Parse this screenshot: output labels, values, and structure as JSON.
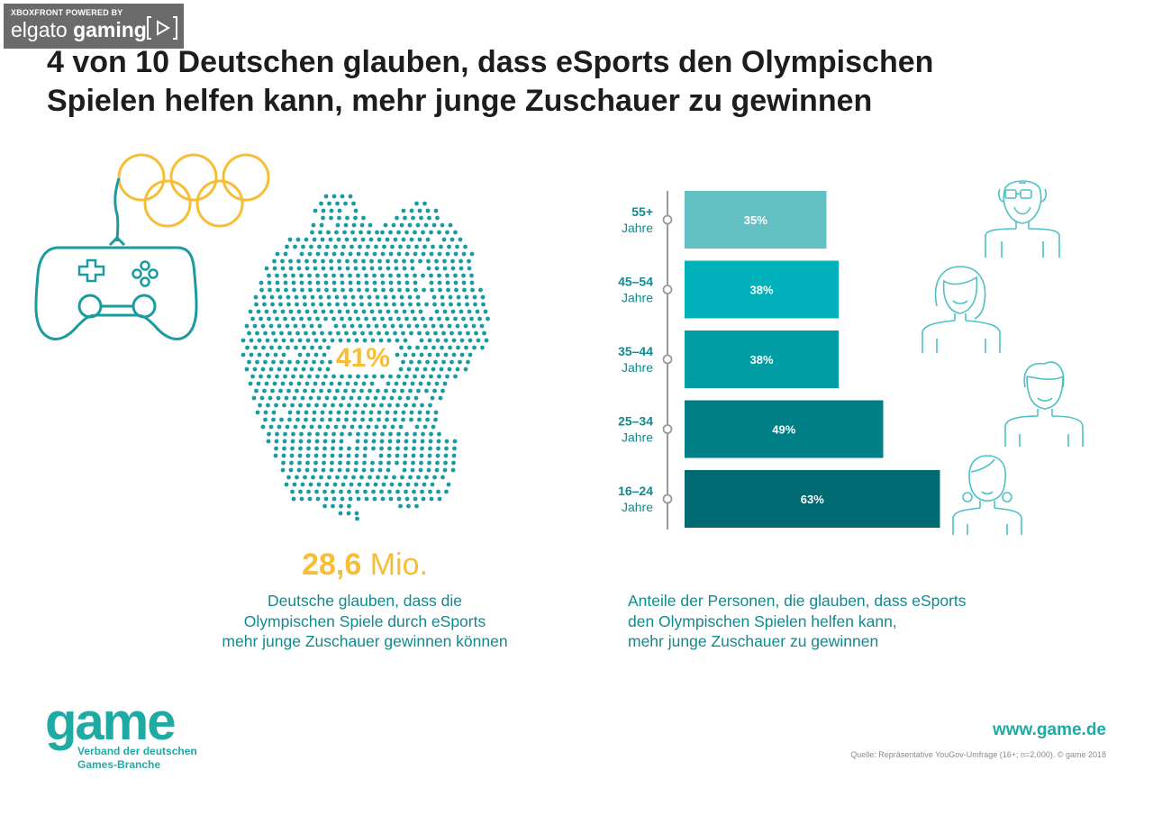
{
  "watermark": {
    "top": "XBOXFRONT POWERED BY",
    "brand_light": "elgato",
    "brand_bold": "gaming"
  },
  "title_line1": "4 von 10 Deutschen glauben, dass eSports den Olympischen",
  "title_line2": "Spielen helfen kann, mehr junge Zuschauer zu gewinnen",
  "map_percent": "41%",
  "big_number": "28,6",
  "big_unit": "Mio.",
  "left_desc": [
    "Deutsche glauben, dass die",
    "Olympischen Spiele durch eSports",
    "mehr junge Zuschauer gewinnen können"
  ],
  "right_desc": [
    "Anteile der Personen, die glauben, dass eSports",
    "den Olympischen Spielen helfen kann,",
    "mehr junge Zuschauer zu gewinnen"
  ],
  "footer": {
    "logo": "game",
    "logo_sub1": "Verband der deutschen",
    "logo_sub2": "Games-Branche",
    "site": "www.game.de",
    "source": "Quelle: Repräsentative YouGov-Umfrage (16+; n=2.000). © game 2018"
  },
  "colors": {
    "yellow": "#f6bd35",
    "teal": "#1faaa4",
    "dark_teal": "#0f8a90",
    "bars": [
      "#63c1c4",
      "#00b1bb",
      "#009ca3",
      "#007f86",
      "#006a73"
    ]
  },
  "icons": [
    "olympic-rings-icon",
    "gamepad-icon",
    "germany-dot-map",
    "senior-man-icon",
    "woman-icon",
    "man-icon",
    "girl-icon"
  ],
  "chart_data": {
    "type": "bar",
    "orientation": "horizontal",
    "categories": [
      [
        "55+",
        "Jahre"
      ],
      [
        "45–54",
        "Jahre"
      ],
      [
        "35–44",
        "Jahre"
      ],
      [
        "25–34",
        "Jahre"
      ],
      [
        "16–24",
        "Jahre"
      ]
    ],
    "values": [
      35,
      38,
      38,
      49,
      63
    ],
    "labels": [
      "35%",
      "38%",
      "38%",
      "49%",
      "63%"
    ],
    "unit": "%"
  }
}
